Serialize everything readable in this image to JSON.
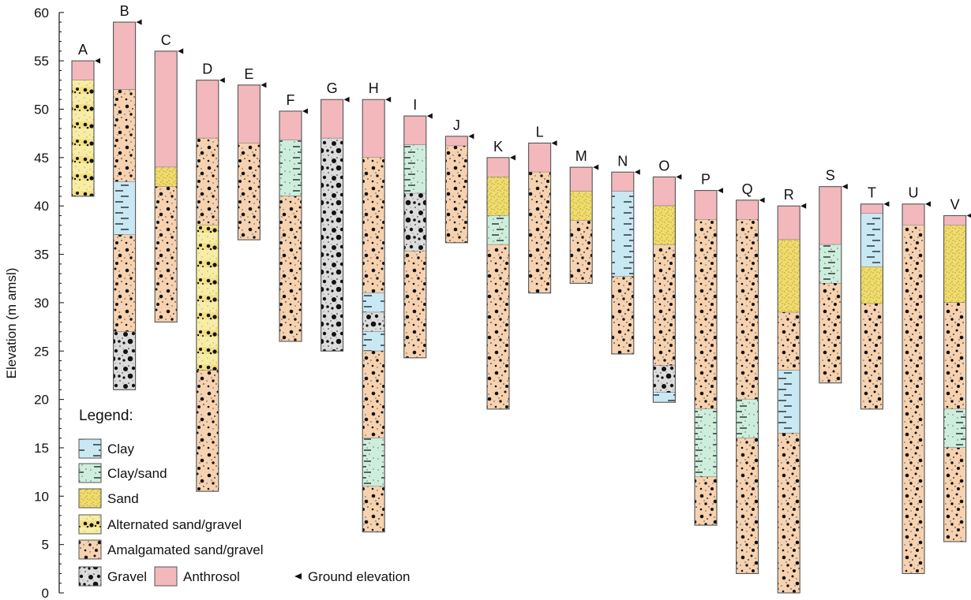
{
  "chart_data": {
    "type": "stratigraphic-column",
    "ylabel": "Elevation (m amsl)",
    "ylim": [
      0,
      60
    ],
    "yticks": [
      0,
      5,
      10,
      15,
      20,
      25,
      30,
      35,
      40,
      45,
      50,
      55,
      60
    ],
    "legend": {
      "title": "Legend:",
      "items": [
        {
          "key": "clay",
          "label": "Clay"
        },
        {
          "key": "clay_sand",
          "label": "Clay/sand"
        },
        {
          "key": "sand",
          "label": "Sand"
        },
        {
          "key": "alt",
          "label": "Alternated sand/gravel"
        },
        {
          "key": "amal",
          "label": "Amalgamated sand/gravel"
        },
        {
          "key": "gravel",
          "label": "Gravel"
        },
        {
          "key": "anthro",
          "label": "Anthrosol"
        },
        {
          "key": "ground",
          "label": "Ground elevation"
        }
      ]
    },
    "colors": {
      "clay": "#c8e8f4",
      "clay_sand": "#cdeedd",
      "sand": "#f0dc6c",
      "alt": "#f8eda6",
      "amal": "#f6d2b0",
      "gravel": "#dcdcdc",
      "anthro": "#f2b8bc"
    },
    "boreholes": [
      {
        "name": "A",
        "top": 55,
        "layers": [
          {
            "type": "anthro",
            "from": 55,
            "to": 53
          },
          {
            "type": "alt",
            "from": 53,
            "to": 41
          }
        ]
      },
      {
        "name": "B",
        "top": 59,
        "layers": [
          {
            "type": "anthro",
            "from": 59,
            "to": 52
          },
          {
            "type": "amal",
            "from": 52,
            "to": 42.5
          },
          {
            "type": "clay",
            "from": 42.5,
            "to": 37
          },
          {
            "type": "amal",
            "from": 37,
            "to": 27
          },
          {
            "type": "gravel",
            "from": 27,
            "to": 21
          }
        ]
      },
      {
        "name": "C",
        "top": 56,
        "layers": [
          {
            "type": "anthro",
            "from": 56,
            "to": 44
          },
          {
            "type": "sand",
            "from": 44,
            "to": 42
          },
          {
            "type": "amal",
            "from": 42,
            "to": 28
          }
        ]
      },
      {
        "name": "D",
        "top": 53,
        "layers": [
          {
            "type": "anthro",
            "from": 53,
            "to": 47
          },
          {
            "type": "amal",
            "from": 47,
            "to": 38
          },
          {
            "type": "alt",
            "from": 38,
            "to": 23
          },
          {
            "type": "amal",
            "from": 23,
            "to": 10.5
          }
        ]
      },
      {
        "name": "E",
        "top": 52.5,
        "layers": [
          {
            "type": "anthro",
            "from": 52.5,
            "to": 46.5
          },
          {
            "type": "amal",
            "from": 46.5,
            "to": 36.5
          }
        ]
      },
      {
        "name": "F",
        "top": 49.8,
        "layers": [
          {
            "type": "anthro",
            "from": 49.8,
            "to": 46.8
          },
          {
            "type": "clay_sand",
            "from": 46.8,
            "to": 41
          },
          {
            "type": "amal",
            "from": 41,
            "to": 26
          }
        ]
      },
      {
        "name": "G",
        "top": 51,
        "layers": [
          {
            "type": "anthro",
            "from": 51,
            "to": 47
          },
          {
            "type": "gravel",
            "from": 47,
            "to": 25
          }
        ]
      },
      {
        "name": "H",
        "top": 51,
        "layers": [
          {
            "type": "anthro",
            "from": 51,
            "to": 45
          },
          {
            "type": "amal",
            "from": 45,
            "to": 31
          },
          {
            "type": "clay",
            "from": 31,
            "to": 29
          },
          {
            "type": "gravel",
            "from": 29,
            "to": 27
          },
          {
            "type": "clay",
            "from": 27,
            "to": 25
          },
          {
            "type": "amal",
            "from": 25,
            "to": 16
          },
          {
            "type": "clay_sand",
            "from": 16,
            "to": 11
          },
          {
            "type": "amal",
            "from": 11,
            "to": 6.3
          }
        ]
      },
      {
        "name": "I",
        "top": 49.3,
        "layers": [
          {
            "type": "anthro",
            "from": 49.3,
            "to": 46.3
          },
          {
            "type": "clay_sand",
            "from": 46.3,
            "to": 41.3
          },
          {
            "type": "gravel",
            "from": 41.3,
            "to": 35.3
          },
          {
            "type": "amal",
            "from": 35.3,
            "to": 24.3
          }
        ]
      },
      {
        "name": "J",
        "top": 47.2,
        "layers": [
          {
            "type": "anthro",
            "from": 47.2,
            "to": 46.2
          },
          {
            "type": "amal",
            "from": 46.2,
            "to": 36.2
          }
        ]
      },
      {
        "name": "K",
        "top": 45,
        "layers": [
          {
            "type": "anthro",
            "from": 45,
            "to": 43
          },
          {
            "type": "sand",
            "from": 43,
            "to": 39
          },
          {
            "type": "clay_sand",
            "from": 39,
            "to": 36
          },
          {
            "type": "amal",
            "from": 36,
            "to": 19
          }
        ]
      },
      {
        "name": "L",
        "top": 46.5,
        "layers": [
          {
            "type": "anthro",
            "from": 46.5,
            "to": 43.5
          },
          {
            "type": "amal",
            "from": 43.5,
            "to": 31
          }
        ]
      },
      {
        "name": "M",
        "top": 44,
        "layers": [
          {
            "type": "anthro",
            "from": 44,
            "to": 41.5
          },
          {
            "type": "sand",
            "from": 41.5,
            "to": 38.5
          },
          {
            "type": "amal",
            "from": 38.5,
            "to": 32
          }
        ]
      },
      {
        "name": "N",
        "top": 43.5,
        "layers": [
          {
            "type": "anthro",
            "from": 43.5,
            "to": 41.5
          },
          {
            "type": "clay",
            "from": 41.5,
            "to": 32.7
          },
          {
            "type": "amal",
            "from": 32.7,
            "to": 24.7
          }
        ]
      },
      {
        "name": "O",
        "top": 43,
        "layers": [
          {
            "type": "anthro",
            "from": 43,
            "to": 40
          },
          {
            "type": "sand",
            "from": 40,
            "to": 36
          },
          {
            "type": "amal",
            "from": 36,
            "to": 23.5
          },
          {
            "type": "gravel",
            "from": 23.5,
            "to": 20.7
          },
          {
            "type": "clay",
            "from": 20.7,
            "to": 19.7
          }
        ]
      },
      {
        "name": "P",
        "top": 41.6,
        "layers": [
          {
            "type": "anthro",
            "from": 41.6,
            "to": 38.6
          },
          {
            "type": "amal",
            "from": 38.6,
            "to": 19
          },
          {
            "type": "clay_sand",
            "from": 19,
            "to": 12
          },
          {
            "type": "amal",
            "from": 12,
            "to": 7
          }
        ]
      },
      {
        "name": "Q",
        "top": 40.6,
        "layers": [
          {
            "type": "anthro",
            "from": 40.6,
            "to": 38.6
          },
          {
            "type": "amal",
            "from": 38.6,
            "to": 20
          },
          {
            "type": "clay_sand",
            "from": 20,
            "to": 16
          },
          {
            "type": "amal",
            "from": 16,
            "to": 2
          }
        ]
      },
      {
        "name": "R",
        "top": 40,
        "layers": [
          {
            "type": "anthro",
            "from": 40,
            "to": 36.5
          },
          {
            "type": "sand",
            "from": 36.5,
            "to": 29
          },
          {
            "type": "amal",
            "from": 29,
            "to": 23
          },
          {
            "type": "clay",
            "from": 23,
            "to": 16.5
          },
          {
            "type": "amal",
            "from": 16.5,
            "to": 0
          }
        ]
      },
      {
        "name": "S",
        "top": 42,
        "layers": [
          {
            "type": "anthro",
            "from": 42,
            "to": 36
          },
          {
            "type": "clay_sand",
            "from": 36,
            "to": 32
          },
          {
            "type": "amal",
            "from": 32,
            "to": 21.7
          }
        ]
      },
      {
        "name": "T",
        "top": 40.2,
        "layers": [
          {
            "type": "anthro",
            "from": 40.2,
            "to": 39.2
          },
          {
            "type": "clay",
            "from": 39.2,
            "to": 33.7
          },
          {
            "type": "sand",
            "from": 33.7,
            "to": 29.9
          },
          {
            "type": "amal",
            "from": 29.9,
            "to": 19
          }
        ]
      },
      {
        "name": "U",
        "top": 40.2,
        "layers": [
          {
            "type": "anthro",
            "from": 40.2,
            "to": 38
          },
          {
            "type": "amal",
            "from": 38,
            "to": 2
          }
        ]
      },
      {
        "name": "V",
        "top": 39,
        "layers": [
          {
            "type": "anthro",
            "from": 39,
            "to": 38
          },
          {
            "type": "sand",
            "from": 38,
            "to": 30
          },
          {
            "type": "amal",
            "from": 30,
            "to": 19
          },
          {
            "type": "clay_sand",
            "from": 19,
            "to": 15
          },
          {
            "type": "amal",
            "from": 15,
            "to": 5.3
          }
        ]
      }
    ]
  }
}
